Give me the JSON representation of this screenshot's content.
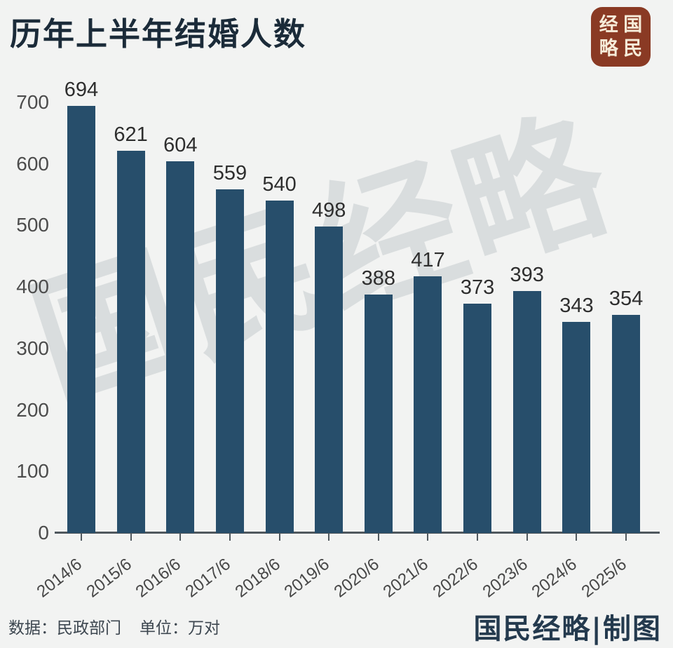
{
  "header": {
    "title": "历年上半年结婚人数",
    "logo": {
      "name": "国民经略",
      "grid": [
        "经",
        "国",
        "略",
        "民"
      ],
      "bg_color": "#8a3a24",
      "text_color": "#f6ecd9"
    }
  },
  "watermark": {
    "text": "国民经略"
  },
  "chart_data": {
    "type": "bar",
    "title": "历年上半年结婚人数",
    "categories": [
      "2014/6",
      "2015/6",
      "2016/6",
      "2017/6",
      "2018/6",
      "2019/6",
      "2020/6",
      "2021/6",
      "2022/6",
      "2023/6",
      "2024/6",
      "2025/6"
    ],
    "values": [
      694,
      621,
      604,
      559,
      540,
      498,
      388,
      417,
      373,
      393,
      343,
      354
    ],
    "xlabel": "",
    "ylabel": "",
    "ylim": [
      0,
      700
    ],
    "yticks": [
      0,
      100,
      200,
      300,
      400,
      500,
      600,
      700
    ],
    "grid": false,
    "legend": false,
    "data_labels": true,
    "x_tick_rotation": -38,
    "bar_color": "#274e6b"
  },
  "footer": {
    "source_label": "数据：",
    "source_value": "民政部门",
    "unit_label": "单位：",
    "unit_value": "万对",
    "credit": "国民经略|制图"
  },
  "colors": {
    "background": "#f2f3f2",
    "bar": "#274e6b",
    "title_text": "#1b2b39",
    "axis_text": "#4c4c4c",
    "value_text": "#2e2e2e",
    "axis_line": "#50585e",
    "watermark": "#c5cacd",
    "logo_bg": "#8a3a24",
    "logo_text": "#f6ecd9",
    "credit_text": "#243a4e"
  }
}
